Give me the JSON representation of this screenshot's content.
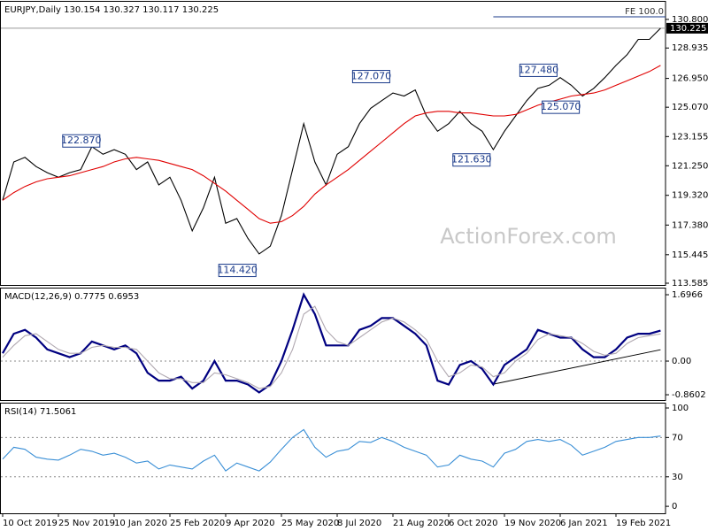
{
  "chart_data": [
    {
      "type": "line",
      "title": "EURJPY,Daily  130.154 130.327 130.117 130.225",
      "watermark": "ActionForex.com",
      "categories": [
        "10 Oct 2019",
        null,
        null,
        null,
        null,
        "25 Nov 2019",
        null,
        null,
        null,
        null,
        "10 Jan 2020",
        null,
        null,
        null,
        null,
        "25 Feb 2020",
        null,
        null,
        null,
        null,
        "9 Apr 2020",
        null,
        null,
        null,
        null,
        "25 May 2020",
        null,
        null,
        null,
        null,
        "8 Jul 2020",
        null,
        null,
        null,
        null,
        "21 Aug 2020",
        null,
        null,
        null,
        null,
        "6 Oct 2020",
        null,
        null,
        null,
        null,
        "19 Nov 2020",
        null,
        null,
        null,
        null,
        "6 Jan 2021",
        null,
        null,
        null,
        null,
        "19 Feb 2021",
        null,
        null,
        null,
        null
      ],
      "series": [
        {
          "color": "#000000",
          "values": [
            119.0,
            121.5,
            121.8,
            121.2,
            120.8,
            120.5,
            120.8,
            121.0,
            122.5,
            122.0,
            122.3,
            122.0,
            121.0,
            121.5,
            120.0,
            120.5,
            119.0,
            117.0,
            118.5,
            120.5,
            117.5,
            117.8,
            116.5,
            115.5,
            116.0,
            118.0,
            121.0,
            124.0,
            121.5,
            120.0,
            122.0,
            122.5,
            124.0,
            125.0,
            125.5,
            126.0,
            125.8,
            126.2,
            124.5,
            123.5,
            124.0,
            124.8,
            124.0,
            123.5,
            122.3,
            123.5,
            124.5,
            125.5,
            126.3,
            126.5,
            127.0,
            126.5,
            125.8,
            126.3,
            127.0,
            127.8,
            128.5,
            129.5,
            129.5,
            130.225
          ]
        },
        {
          "color": "#e00000",
          "values": [
            119.0,
            119.5,
            119.9,
            120.2,
            120.4,
            120.5,
            120.6,
            120.8,
            121.0,
            121.2,
            121.5,
            121.7,
            121.8,
            121.7,
            121.6,
            121.4,
            121.2,
            121.0,
            120.6,
            120.1,
            119.6,
            119.0,
            118.4,
            117.8,
            117.5,
            117.6,
            118.0,
            118.6,
            119.4,
            120.0,
            120.5,
            121.0,
            121.6,
            122.2,
            122.8,
            123.4,
            124.0,
            124.5,
            124.7,
            124.8,
            124.8,
            124.7,
            124.7,
            124.6,
            124.5,
            124.5,
            124.6,
            124.9,
            125.2,
            125.4,
            125.6,
            125.8,
            125.9,
            126.0,
            126.2,
            126.5,
            126.8,
            127.1,
            127.4,
            127.8
          ]
        }
      ],
      "annotations": [
        {
          "index": 8,
          "value": 122.87,
          "label": "122.870"
        },
        {
          "index": 22,
          "value": 114.42,
          "label": "114.420"
        },
        {
          "index": 34,
          "value": 127.07,
          "label": "127.070"
        },
        {
          "index": 43,
          "value": 121.63,
          "label": "121.630"
        },
        {
          "index": 49,
          "value": 127.48,
          "label": "127.480"
        },
        {
          "index": 51,
          "value": 125.07,
          "label": "125.070"
        }
      ],
      "fe_level": {
        "index": 44,
        "value": 130.97,
        "label": "FE 100.0"
      },
      "current_price": {
        "value": 130.225,
        "label": "130.225"
      },
      "ylim": [
        113.47,
        132.01
      ],
      "yticks": [
        {
          "value": 130.8,
          "label": "130.800"
        },
        {
          "value": 128.935,
          "label": "128.935"
        },
        {
          "value": 126.95,
          "label": "126.950"
        },
        {
          "value": 125.07,
          "label": "125.070"
        },
        {
          "value": 123.155,
          "label": "123.155"
        },
        {
          "value": 121.25,
          "label": "121.250"
        },
        {
          "value": 119.32,
          "label": "119.320"
        },
        {
          "value": 117.38,
          "label": "117.380"
        },
        {
          "value": 115.445,
          "label": "115.445"
        },
        {
          "value": 113.585,
          "label": "113.585"
        }
      ],
      "grid": false
    },
    {
      "type": "line",
      "title": "MACD(12,26,9) 0.7775 0.6953",
      "series": [
        {
          "color": "#000080",
          "values": [
            0.2,
            0.7,
            0.8,
            0.6,
            0.3,
            0.2,
            0.1,
            0.2,
            0.5,
            0.4,
            0.3,
            0.4,
            0.2,
            -0.3,
            -0.5,
            -0.5,
            -0.4,
            -0.7,
            -0.5,
            0.0,
            -0.5,
            -0.5,
            -0.6,
            -0.8,
            -0.6,
            0.0,
            0.8,
            1.7,
            1.2,
            0.4,
            0.4,
            0.4,
            0.8,
            0.9,
            1.1,
            1.1,
            0.9,
            0.7,
            0.4,
            -0.5,
            -0.6,
            -0.1,
            0.0,
            -0.2,
            -0.6,
            -0.1,
            0.1,
            0.3,
            0.8,
            0.7,
            0.6,
            0.6,
            0.3,
            0.1,
            0.1,
            0.3,
            0.6,
            0.7,
            0.7,
            0.7775
          ]
        },
        {
          "color": "#b0a8b0",
          "values": [
            0.1,
            0.4,
            0.65,
            0.7,
            0.5,
            0.3,
            0.2,
            0.2,
            0.35,
            0.4,
            0.35,
            0.35,
            0.3,
            0.0,
            -0.3,
            -0.45,
            -0.45,
            -0.55,
            -0.55,
            -0.3,
            -0.35,
            -0.45,
            -0.55,
            -0.7,
            -0.65,
            -0.3,
            0.3,
            1.2,
            1.4,
            0.8,
            0.5,
            0.4,
            0.6,
            0.8,
            1.0,
            1.1,
            1.0,
            0.8,
            0.55,
            0.0,
            -0.4,
            -0.3,
            -0.1,
            -0.15,
            -0.4,
            -0.3,
            0.0,
            0.2,
            0.55,
            0.7,
            0.65,
            0.6,
            0.45,
            0.25,
            0.15,
            0.2,
            0.45,
            0.6,
            0.65,
            0.6953
          ]
        }
      ],
      "trendline": {
        "x": [
          44,
          59
        ],
        "values": [
          -0.59,
          0.29
        ]
      },
      "ylim": [
        -0.995,
        1.878
      ],
      "yticks": [
        1.6966,
        {
          "value": 0,
          "label": "0.00"
        },
        -0.8602
      ],
      "gridlines": [
        0
      ],
      "grid": true
    },
    {
      "type": "line",
      "title": "RSI(14) 71.5061",
      "series": [
        {
          "color": "#3a8fd6",
          "values": [
            48,
            60,
            58,
            50,
            48,
            47,
            52,
            58,
            56,
            52,
            54,
            50,
            44,
            46,
            38,
            42,
            40,
            38,
            46,
            52,
            36,
            44,
            40,
            36,
            45,
            58,
            70,
            78,
            60,
            50,
            56,
            58,
            66,
            65,
            70,
            66,
            60,
            56,
            52,
            40,
            42,
            52,
            48,
            46,
            40,
            54,
            58,
            66,
            68,
            66,
            68,
            62,
            52,
            56,
            60,
            66,
            68,
            70,
            70,
            71.5061
          ]
        }
      ],
      "ylim": [
        -7.1,
        105.4
      ],
      "yticks": [
        100,
        70,
        30,
        0
      ],
      "gridlines": [
        70,
        30
      ],
      "grid": true
    }
  ]
}
